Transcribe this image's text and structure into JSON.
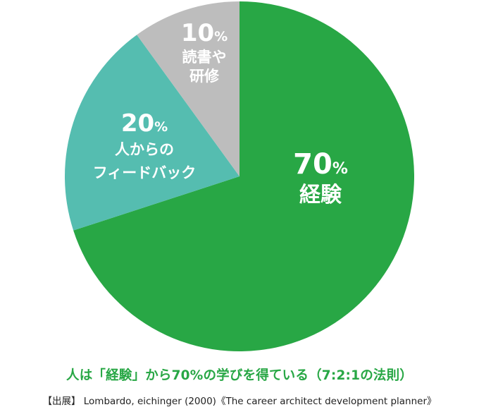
{
  "chart_data": {
    "type": "pie",
    "slices": [
      {
        "value": 70,
        "percent_label": "70",
        "label_lines": [
          "経験"
        ],
        "color": "#28a745"
      },
      {
        "value": 20,
        "percent_label": "20",
        "label_lines": [
          "人からの",
          "フィードバック"
        ],
        "color": "#55bdb0"
      },
      {
        "value": 10,
        "percent_label": "10",
        "label_lines": [
          "読書や",
          "研修"
        ],
        "color": "#bdbdbd"
      }
    ],
    "percent_unit": "%",
    "start_angle_deg": 0,
    "direction": "clockwise",
    "title": "人は「経験」から70%の学びを得ている（7:2:1の法則）",
    "source": "【出展】 Lombardo, eichinger (2000)《The career architect development planner》"
  }
}
